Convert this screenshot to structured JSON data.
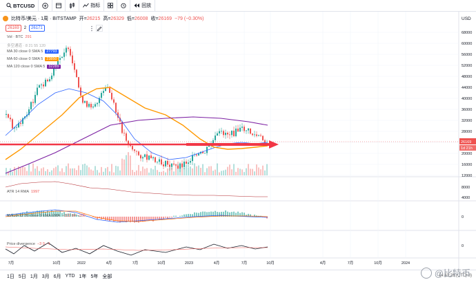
{
  "toolbar": {
    "symbol": "BTCUSD",
    "indicators_label": "指标",
    "replay_label": "回放"
  },
  "legend": {
    "title": "比特币/美元 · 1周 · BITSTAMP",
    "open_label": "开",
    "open": "26215",
    "high_label": "高",
    "high": "26329",
    "low_label": "低",
    "low": "26008",
    "close_label": "收",
    "close": "26169",
    "change": "−79 (−0.30%)",
    "bid": "26169",
    "spread": "2",
    "ask": "26171"
  },
  "indicators": {
    "vol_label": "Vol · BTC",
    "vol_value": "291",
    "ma1_label": "MA 30 close 0 SMA 5",
    "ma1_value": "27793",
    "ma2_label": "MA 60 close 0 SMA 5",
    "ma2_value": "23850",
    "ma3_label": "MA 120 close 0 SMA 5",
    "ma3_value": "32289",
    "hidden_label": "多空通道 · 8 21 55 120",
    "atr_label": "ATR 14 RMA",
    "atr_value": "1997",
    "macd_label": "MACD 12 26 close 9 EMA EMA",
    "macd_values": "−122  84  −206",
    "pd_label": "Price divergence",
    "pd_values": "−3  0  −1"
  },
  "axis": {
    "currency": "USD",
    "price_ticks": [
      "68000",
      "60000",
      "56000",
      "52000",
      "48000",
      "44000",
      "40000",
      "36000",
      "32000",
      "28000",
      "24000",
      "20000",
      "16000",
      "12000"
    ],
    "atr_ticks": [
      "8000",
      "4000"
    ],
    "macd_ticks": [
      "0"
    ],
    "pd_ticks": [
      "0"
    ],
    "time_ticks": [
      "7月",
      "10月",
      "2022",
      "4月",
      "7月",
      "10月",
      "2023",
      "4月",
      "7月",
      "10月",
      "4月",
      "7月",
      "10月",
      "2024"
    ],
    "current_price_tag": "26169",
    "countdown_tag": "1d 21h"
  },
  "bottom": {
    "range_buttons": [
      "1日",
      "5日",
      "1月",
      "3月",
      "6月",
      "YTD",
      "1年",
      "5年",
      "全部"
    ],
    "time": "14:43:28 (UTC+8)"
  },
  "watermark": "@比特币",
  "colors": {
    "up": "#26a69a",
    "down": "#ef5350",
    "ma1": "#2962ff",
    "ma2": "#ff9800",
    "ma3": "#7b1fa2",
    "arrow": "#f23645"
  }
}
